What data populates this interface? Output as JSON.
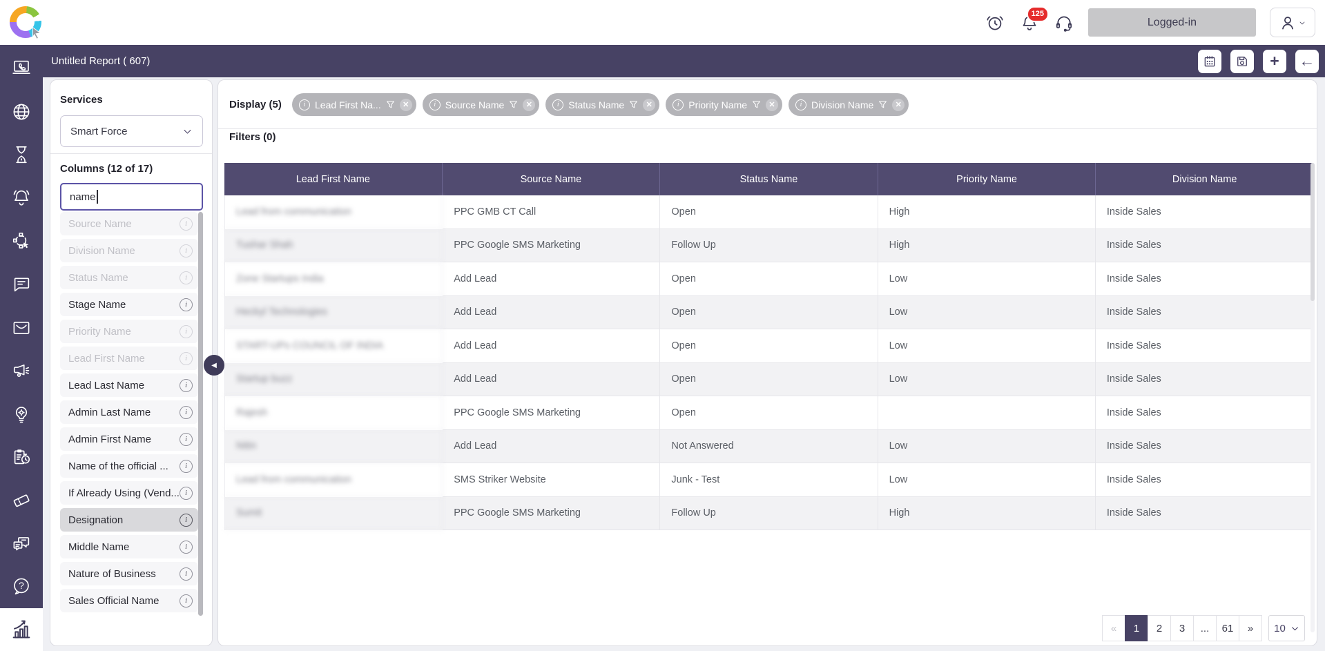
{
  "topbar": {
    "notification_count": "125",
    "logged_in_label": "Logged-in",
    "icons": [
      "alarm-icon",
      "bell-icon",
      "headset-icon",
      "user-icon"
    ]
  },
  "header": {
    "title": "Untitled Report ( 607)",
    "action_icons": [
      "calendar-icon",
      "save-icon",
      "add-icon",
      "back-icon"
    ]
  },
  "sidebar": {
    "icons": [
      "call-icon",
      "globe-icon",
      "hourglass-icon",
      "bell-icon",
      "automation-icon",
      "chat-icon",
      "mail-icon",
      "megaphone-icon",
      "idea-icon",
      "tasks-icon",
      "ticket-icon",
      "conversations-icon",
      "help-icon",
      "reports-icon"
    ]
  },
  "panel": {
    "services_label": "Services",
    "service_selected": "Smart Force",
    "columns_label": "Columns (12 of 17)",
    "search_value": "name",
    "columns": [
      {
        "label": "Source Name",
        "state": "disabled"
      },
      {
        "label": "Division Name",
        "state": "disabled"
      },
      {
        "label": "Status Name",
        "state": "disabled"
      },
      {
        "label": "Stage Name",
        "state": "normal"
      },
      {
        "label": "Priority Name",
        "state": "disabled"
      },
      {
        "label": "Lead First Name",
        "state": "disabled"
      },
      {
        "label": "Lead Last Name",
        "state": "normal"
      },
      {
        "label": "Admin Last Name",
        "state": "normal"
      },
      {
        "label": "Admin First Name",
        "state": "normal"
      },
      {
        "label": "Name of the official ...",
        "state": "normal"
      },
      {
        "label": "If Already Using (Vend...",
        "state": "normal"
      },
      {
        "label": "Designation",
        "state": "highlighted"
      },
      {
        "label": "Middle Name",
        "state": "normal"
      },
      {
        "label": "Nature of Business",
        "state": "normal"
      },
      {
        "label": "Sales Official Name",
        "state": "normal"
      }
    ]
  },
  "main": {
    "display_label": "Display (5)",
    "filters_label": "Filters (0)",
    "chips": [
      {
        "label": "Lead First Na..."
      },
      {
        "label": "Source Name"
      },
      {
        "label": "Status Name"
      },
      {
        "label": "Priority Name"
      },
      {
        "label": "Division Name"
      }
    ],
    "table": {
      "headers": [
        "Lead First Name",
        "Source Name",
        "Status Name",
        "Priority Name",
        "Division Name"
      ],
      "rows": [
        {
          "cells": [
            "Lead from communication",
            "PPC GMB CT Call",
            "Open",
            "High",
            "Inside Sales"
          ],
          "first_blurred": true
        },
        {
          "cells": [
            "Tushar Shah",
            "PPC Google SMS Marketing",
            "Follow Up",
            "High",
            "Inside Sales"
          ],
          "first_blurred": true
        },
        {
          "cells": [
            "Zone Startups India",
            "Add Lead",
            "Open",
            "Low",
            "Inside Sales"
          ],
          "first_blurred": true
        },
        {
          "cells": [
            "Heckyl Technologies",
            "Add Lead",
            "Open",
            "Low",
            "Inside Sales"
          ],
          "first_blurred": true
        },
        {
          "cells": [
            "START-UPs COUNCIL OF INDIA",
            "Add Lead",
            "Open",
            "Low",
            "Inside Sales"
          ],
          "first_blurred": true
        },
        {
          "cells": [
            "Startup buzz",
            "Add Lead",
            "Open",
            "Low",
            "Inside Sales"
          ],
          "first_blurred": true
        },
        {
          "cells": [
            "Rajesh",
            "PPC Google SMS Marketing",
            "Open",
            "",
            "Inside Sales"
          ],
          "first_blurred": true
        },
        {
          "cells": [
            "Nitin",
            "Add Lead",
            "Not Answered",
            "Low",
            "Inside Sales"
          ],
          "first_blurred": true
        },
        {
          "cells": [
            "Lead from communication",
            "SMS Striker Website",
            "Junk - Test",
            "Low",
            "Inside Sales"
          ],
          "first_blurred": true
        },
        {
          "cells": [
            "Sumit",
            "PPC Google SMS Marketing",
            "Follow Up",
            "High",
            "Inside Sales"
          ],
          "first_blurred": true
        }
      ]
    },
    "pagination": {
      "items": [
        {
          "label": "«",
          "state": "disabled"
        },
        {
          "label": "1",
          "state": "active"
        },
        {
          "label": "2",
          "state": "normal"
        },
        {
          "label": "3",
          "state": "normal"
        },
        {
          "label": "...",
          "state": "normal"
        },
        {
          "label": "61",
          "state": "normal"
        },
        {
          "label": "»",
          "state": "normal"
        }
      ],
      "page_size": "10"
    }
  },
  "colors": {
    "purple": "#474264",
    "table_header_purple": "#514b70",
    "chip_gray": "#b4b4b8",
    "badge_red": "#e52c2c",
    "row_alt": "#f2f2f4"
  }
}
